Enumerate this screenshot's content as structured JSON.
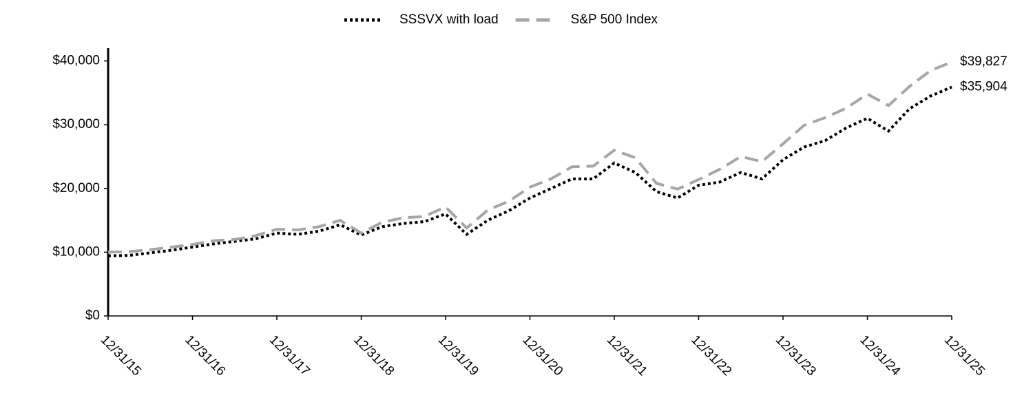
{
  "chart_data": {
    "type": "line",
    "categories": [
      "12/31/15",
      null,
      null,
      null,
      "12/31/16",
      null,
      null,
      null,
      "12/31/17",
      null,
      null,
      null,
      "12/31/18",
      null,
      null,
      null,
      "12/31/19",
      null,
      null,
      null,
      "12/31/20",
      null,
      null,
      null,
      "12/31/21",
      null,
      null,
      null,
      "12/31/22",
      null,
      null,
      null,
      "12/31/23",
      null,
      null,
      null,
      "12/31/24",
      null,
      null,
      null,
      "12/31/25"
    ],
    "series": [
      {
        "name": "SSSVX with load",
        "color": "#000000",
        "dash": "dotted",
        "values": [
          9425,
          9500,
          9900,
          10300,
          10800,
          11300,
          11700,
          12100,
          13000,
          12800,
          13300,
          14300,
          12700,
          14000,
          14500,
          14800,
          16000,
          12800,
          15000,
          16500,
          18500,
          20000,
          21500,
          21500,
          24000,
          22500,
          19500,
          18500,
          20500,
          21000,
          22500,
          21500,
          24500,
          26500,
          27500,
          29500,
          31000,
          29000,
          32500,
          34500,
          35904
        ],
        "value_labels": [
          null,
          null,
          null,
          null,
          null,
          null,
          null,
          null,
          null,
          null,
          null,
          null,
          null,
          null,
          null,
          null,
          null,
          null,
          null,
          null,
          null,
          null,
          null,
          null,
          null,
          null,
          null,
          null,
          null,
          null,
          null,
          null,
          null,
          null,
          null,
          null,
          null,
          null,
          null,
          null,
          "$35,904"
        ]
      },
      {
        "name": "S&P 500 Index",
        "color": "#a6a6a6",
        "dash": "dashed",
        "values": [
          10000,
          10100,
          10400,
          10800,
          11200,
          11800,
          12000,
          12600,
          13600,
          13500,
          14000,
          15000,
          13000,
          14700,
          15400,
          15600,
          17100,
          13800,
          16600,
          18000,
          20200,
          21500,
          23400,
          23500,
          26000,
          24800,
          20800,
          19900,
          21400,
          23000,
          25000,
          24200,
          27000,
          29900,
          31100,
          32600,
          34800,
          33000,
          36000,
          38500,
          39827
        ],
        "value_labels": [
          null,
          null,
          null,
          null,
          null,
          null,
          null,
          null,
          null,
          null,
          null,
          null,
          null,
          null,
          null,
          null,
          null,
          null,
          null,
          null,
          null,
          null,
          null,
          null,
          null,
          null,
          null,
          null,
          null,
          null,
          null,
          null,
          null,
          null,
          null,
          null,
          null,
          null,
          null,
          null,
          "$39,827"
        ]
      }
    ],
    "ylim": [
      0,
      42000
    ],
    "yticks": [
      {
        "value": 0,
        "label": "$0"
      },
      {
        "value": 10000,
        "label": "$10,000"
      },
      {
        "value": 20000,
        "label": "$20,000"
      },
      {
        "value": 30000,
        "label": "$30,000"
      },
      {
        "value": 40000,
        "label": "$40,000"
      }
    ],
    "legend": "top"
  }
}
